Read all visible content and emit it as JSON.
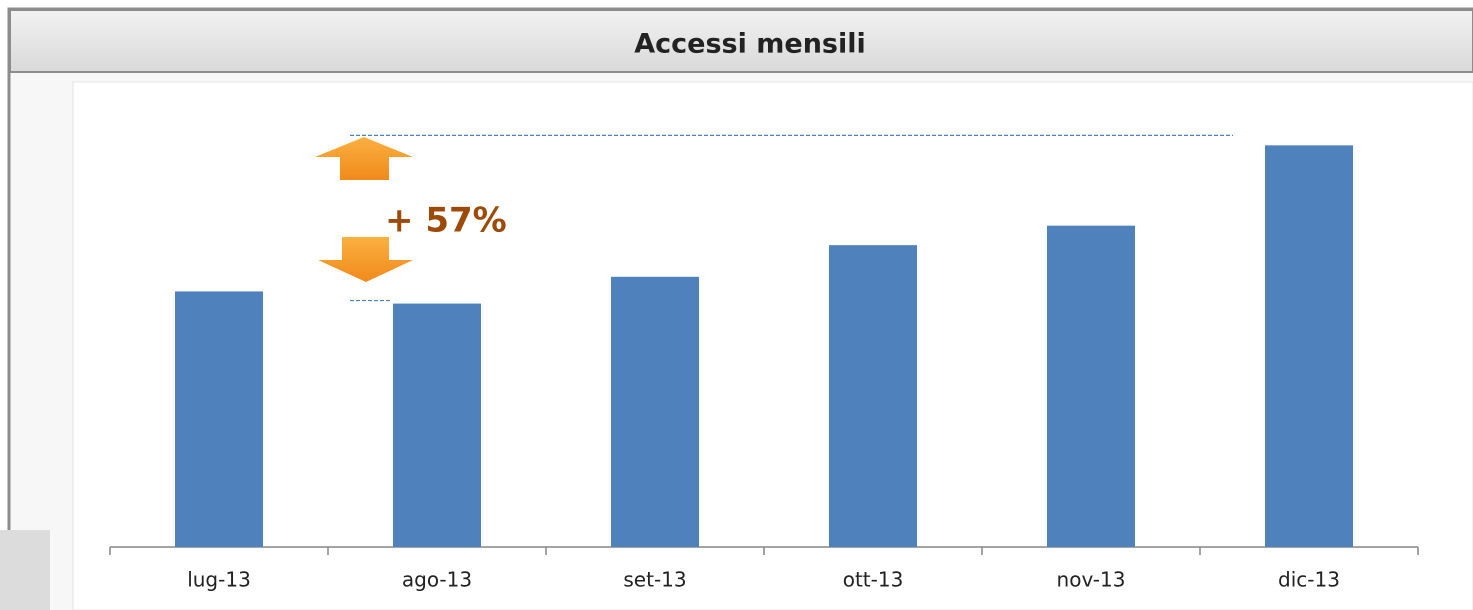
{
  "chart_data": {
    "type": "bar",
    "title": "Accessi mensili",
    "categories": [
      "lug-13",
      "ago-13",
      "set-13",
      "ott-13",
      "nov-13",
      "dic-13"
    ],
    "values": [
      105,
      100,
      111,
      124,
      132,
      165
    ],
    "color": "#4f81bd",
    "ylim": [
      0,
      175
    ],
    "annotation": "+ 57%",
    "annotation_color": "#9c4a06"
  }
}
